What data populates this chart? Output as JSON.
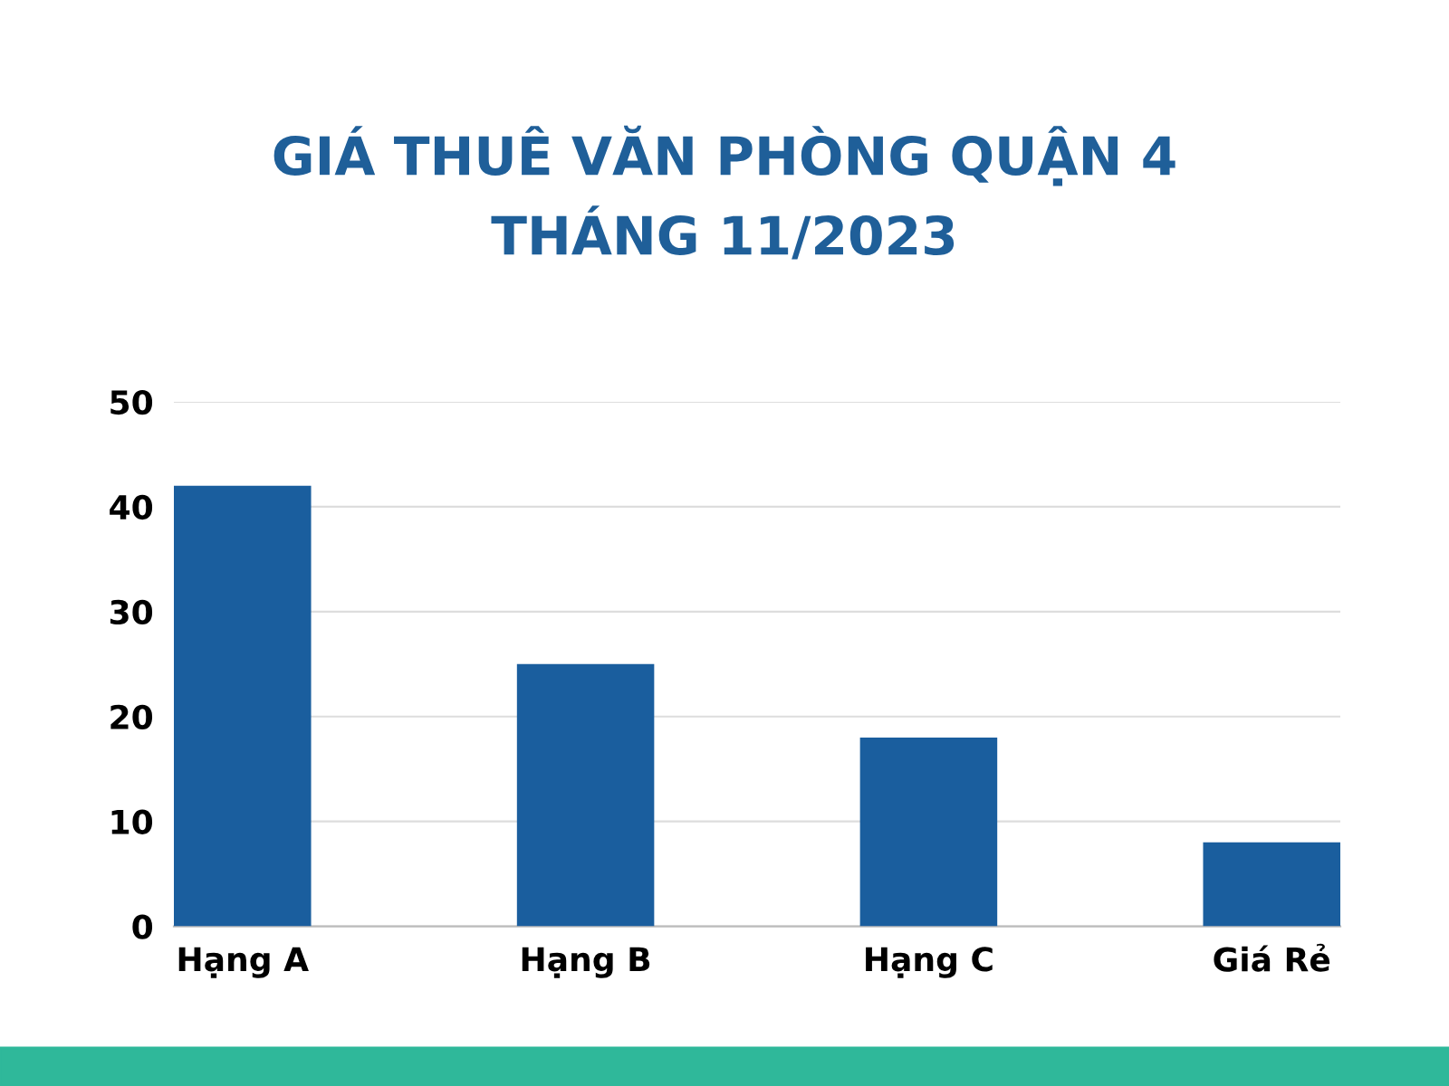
{
  "chart_data": {
    "type": "bar",
    "title": "GIÁ THUÊ VĂN PHÒNG QUẬN 4\nTHÁNG 11/2023",
    "categories": [
      "Hạng A",
      "Hạng B",
      "Hạng C",
      "Giá Rẻ"
    ],
    "values": [
      42,
      25,
      18,
      8
    ],
    "color": "#1a5e9e",
    "ylim": [
      0,
      50
    ],
    "yticks": [
      0,
      10,
      20,
      30,
      40,
      50
    ],
    "grid": "y",
    "legend": false
  }
}
